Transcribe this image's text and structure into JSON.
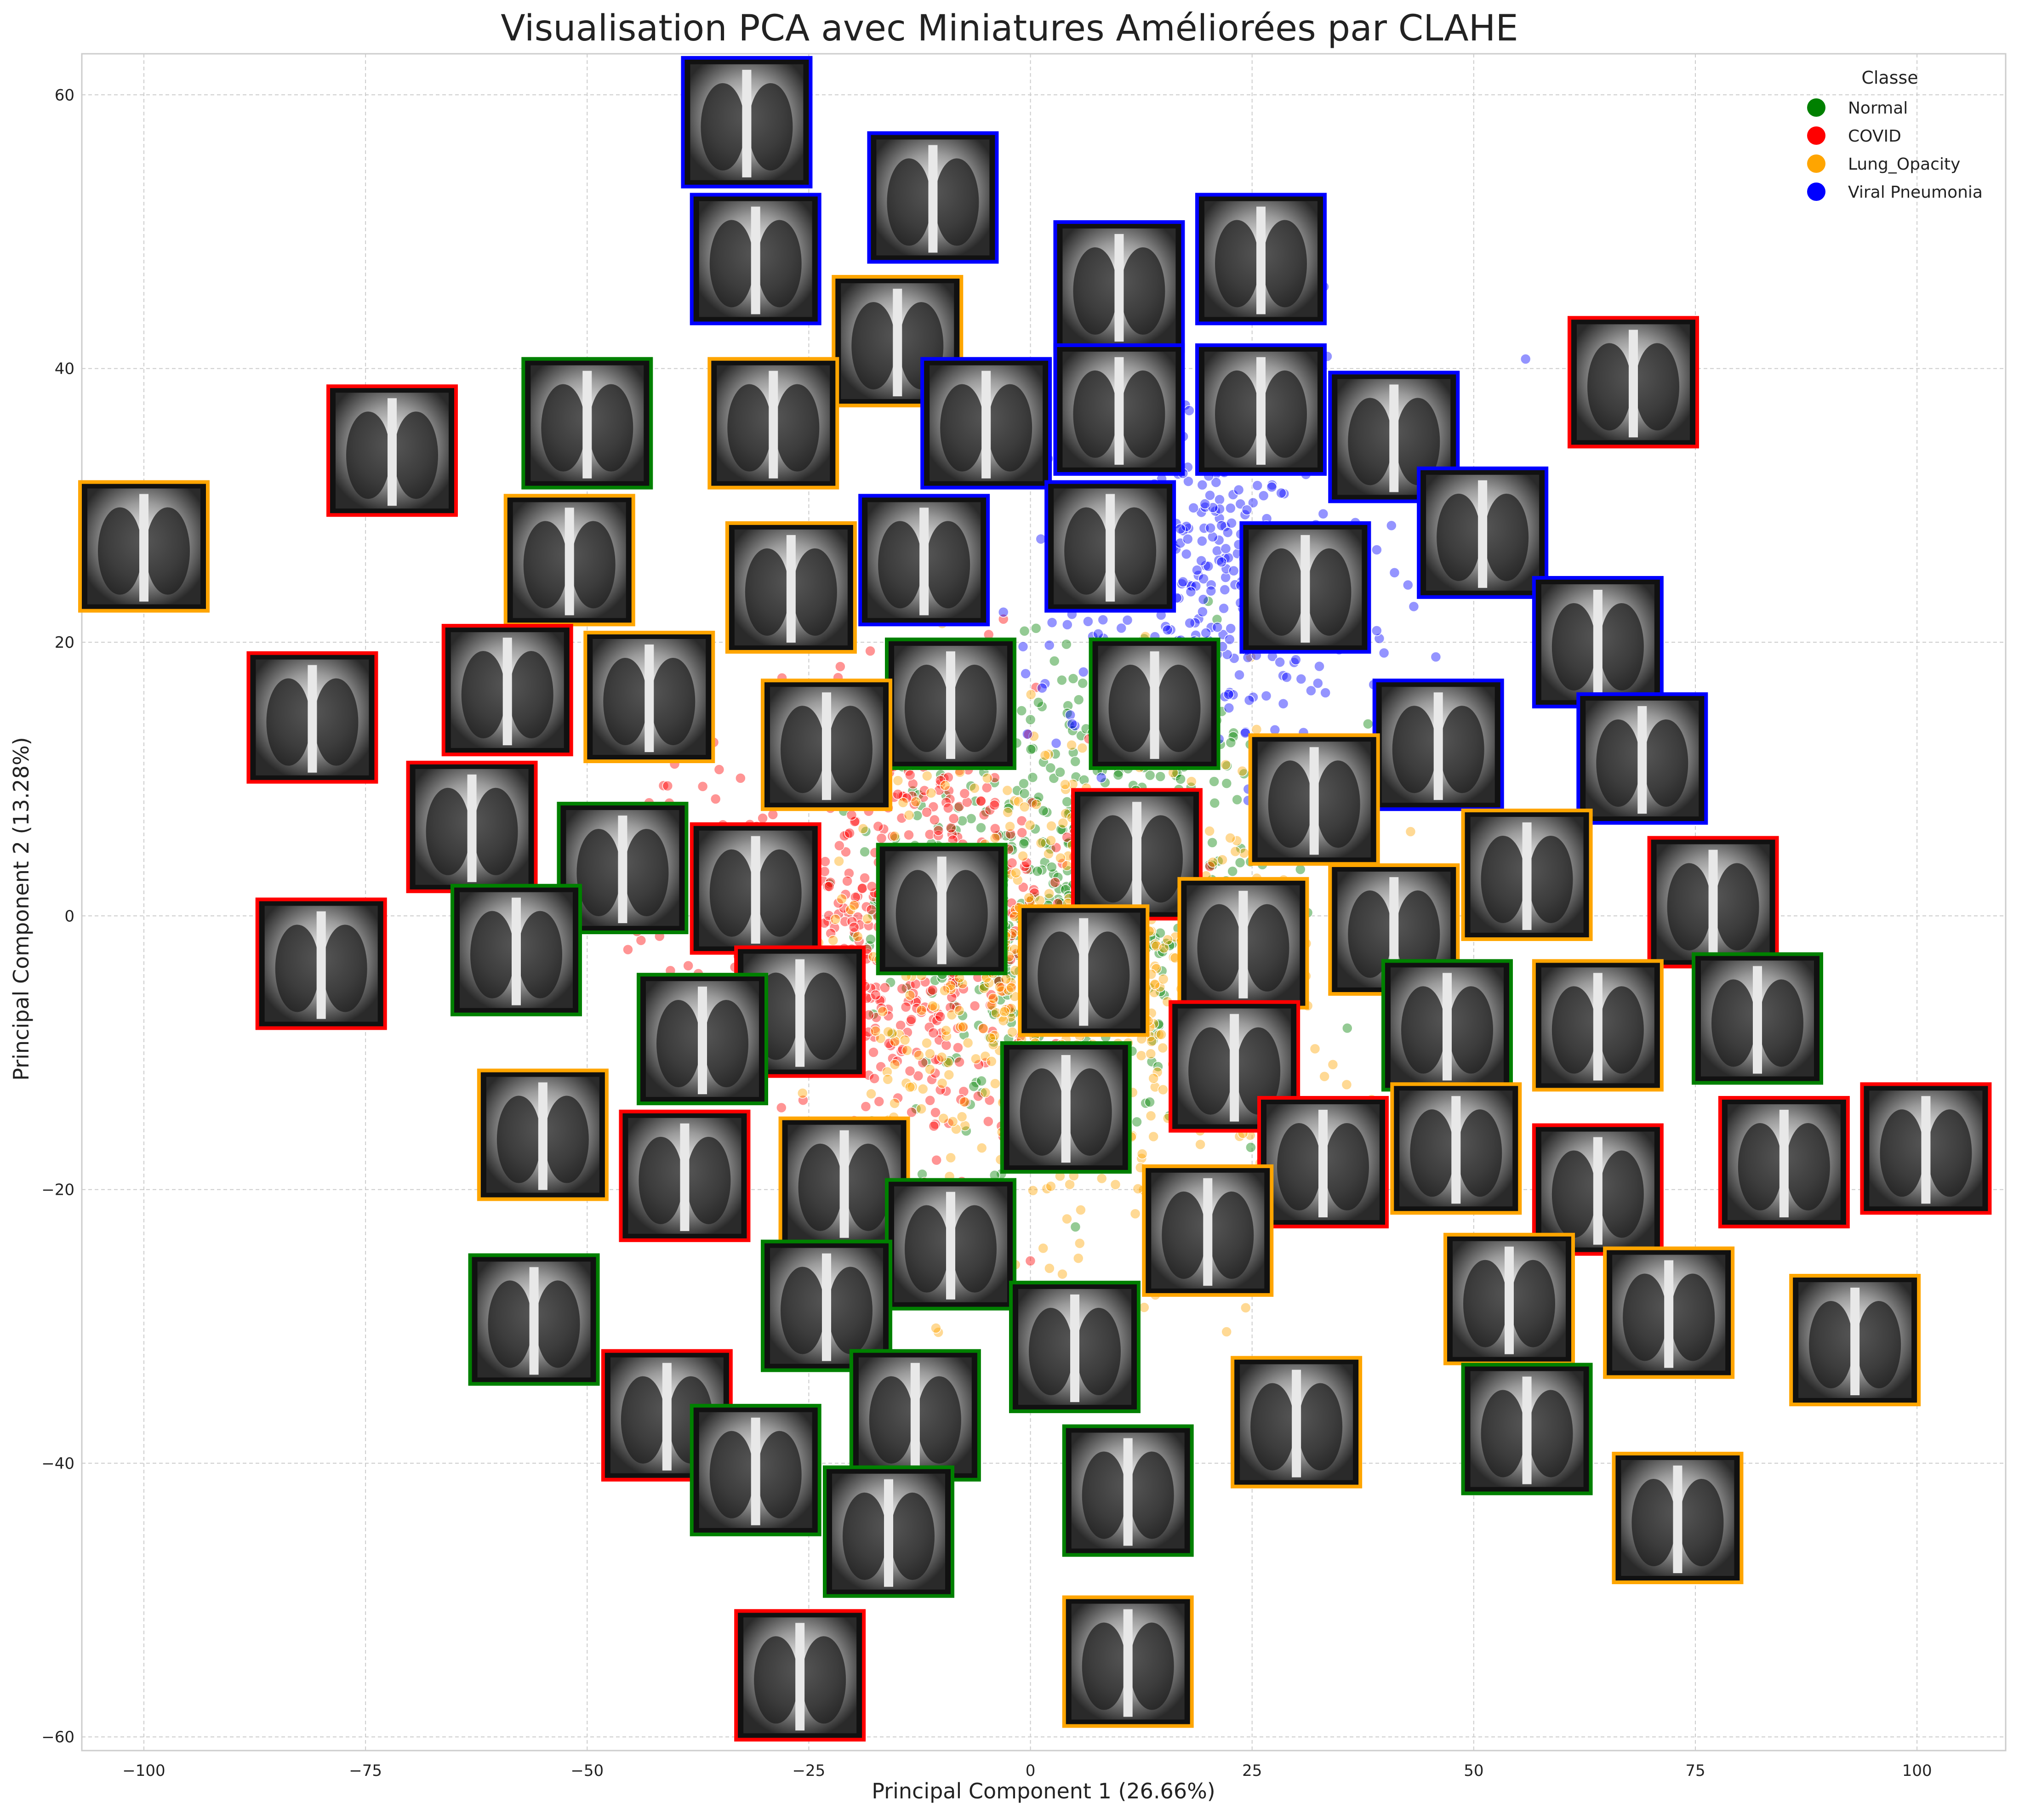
{
  "chart_data": {
    "type": "scatter",
    "title": "Visualisation PCA avec Miniatures Améliorées par CLAHE",
    "xlabel": "Principal Component 1 (26.66%)",
    "ylabel": "Principal Component 2 (13.28%)",
    "xlim": [
      -107,
      110
    ],
    "ylim": [
      -61,
      63
    ],
    "x_ticks": [
      -100,
      -75,
      -50,
      -25,
      0,
      25,
      50,
      75,
      100
    ],
    "x_tick_labels": [
      "−100",
      "−75",
      "−50",
      "−25",
      "0",
      "25",
      "50",
      "75",
      "100"
    ],
    "y_ticks": [
      -60,
      -40,
      -20,
      0,
      20,
      40,
      60
    ],
    "y_tick_labels": [
      "−60",
      "−40",
      "−20",
      "0",
      "20",
      "40",
      "60"
    ],
    "grid": true,
    "legend": {
      "title": "Classe",
      "position": "top-right",
      "entries": [
        "Normal",
        "COVID",
        "Lung_Opacity",
        "Viral Pneumonia"
      ]
    },
    "class_colors": {
      "Normal": "#008000",
      "COVID": "#ff0000",
      "Lung_Opacity": "#ffa500",
      "Viral Pneumonia": "#0000ff"
    },
    "point_clouds": [
      {
        "class": "Normal",
        "center": [
          5,
          2
        ],
        "spread": [
          20,
          15
        ],
        "n": 650
      },
      {
        "class": "COVID",
        "center": [
          -15,
          0
        ],
        "spread": [
          20,
          14
        ],
        "n": 650
      },
      {
        "class": "Lung_Opacity",
        "center": [
          5,
          -5
        ],
        "spread": [
          24,
          16
        ],
        "n": 700
      },
      {
        "class": "Viral Pneumonia",
        "center": [
          20,
          25
        ],
        "spread": [
          18,
          12
        ],
        "n": 400
      }
    ],
    "thumbnails": [
      {
        "class": "Viral Pneumonia",
        "x": -32,
        "y": 58
      },
      {
        "class": "Viral Pneumonia",
        "x": -11,
        "y": 52.5
      },
      {
        "class": "Viral Pneumonia",
        "x": -31,
        "y": 48
      },
      {
        "class": "Viral Pneumonia",
        "x": 10,
        "y": 46
      },
      {
        "class": "Viral Pneumonia",
        "x": 26,
        "y": 48
      },
      {
        "class": "Lung_Opacity",
        "x": -15,
        "y": 42
      },
      {
        "class": "COVID",
        "x": 68,
        "y": 39
      },
      {
        "class": "Viral Pneumonia",
        "x": -5,
        "y": 36
      },
      {
        "class": "Viral Pneumonia",
        "x": 10,
        "y": 37
      },
      {
        "class": "Viral Pneumonia",
        "x": 26,
        "y": 37
      },
      {
        "class": "Viral Pneumonia",
        "x": 41,
        "y": 35
      },
      {
        "class": "Lung_Opacity",
        "x": -29,
        "y": 36
      },
      {
        "class": "COVID",
        "x": -72,
        "y": 34
      },
      {
        "class": "Normal",
        "x": -50,
        "y": 36
      },
      {
        "class": "Lung_Opacity",
        "x": -100,
        "y": 27
      },
      {
        "class": "Lung_Opacity",
        "x": -52,
        "y": 26
      },
      {
        "class": "Lung_Opacity",
        "x": -27,
        "y": 24
      },
      {
        "class": "Viral Pneumonia",
        "x": -12,
        "y": 26
      },
      {
        "class": "Viral Pneumonia",
        "x": 9,
        "y": 27
      },
      {
        "class": "Viral Pneumonia",
        "x": 31,
        "y": 24
      },
      {
        "class": "Viral Pneumonia",
        "x": 51,
        "y": 28
      },
      {
        "class": "COVID",
        "x": -81,
        "y": 14.5
      },
      {
        "class": "COVID",
        "x": -59,
        "y": 16.5
      },
      {
        "class": "Lung_Opacity",
        "x": -43,
        "y": 16
      },
      {
        "class": "Viral Pneumonia",
        "x": 64,
        "y": 20
      },
      {
        "class": "Normal",
        "x": -9,
        "y": 15.5
      },
      {
        "class": "Normal",
        "x": 14,
        "y": 15.5
      },
      {
        "class": "Lung_Opacity",
        "x": -23,
        "y": 12.5
      },
      {
        "class": "Viral Pneumonia",
        "x": 46,
        "y": 12.5
      },
      {
        "class": "Viral Pneumonia",
        "x": 69,
        "y": 11.5
      },
      {
        "class": "COVID",
        "x": -63,
        "y": 6.5
      },
      {
        "class": "Lung_Opacity",
        "x": 32,
        "y": 8.5
      },
      {
        "class": "Normal",
        "x": -46,
        "y": 3.5
      },
      {
        "class": "COVID",
        "x": -31,
        "y": 2
      },
      {
        "class": "COVID",
        "x": 12,
        "y": 4.5
      },
      {
        "class": "Lung_Opacity",
        "x": 56,
        "y": 3
      },
      {
        "class": "COVID",
        "x": 77,
        "y": 1
      },
      {
        "class": "Normal",
        "x": -10,
        "y": 0.5
      },
      {
        "class": "COVID",
        "x": -80,
        "y": -3.5
      },
      {
        "class": "Normal",
        "x": -58,
        "y": -2.5
      },
      {
        "class": "Lung_Opacity",
        "x": 41,
        "y": -1
      },
      {
        "class": "Lung_Opacity",
        "x": 6,
        "y": -4
      },
      {
        "class": "Lung_Opacity",
        "x": 24,
        "y": -2
      },
      {
        "class": "COVID",
        "x": -26,
        "y": -7
      },
      {
        "class": "Normal",
        "x": -37,
        "y": -9
      },
      {
        "class": "Normal",
        "x": 47,
        "y": -8
      },
      {
        "class": "Lung_Opacity",
        "x": 64,
        "y": -8
      },
      {
        "class": "Normal",
        "x": 82,
        "y": -7.5
      },
      {
        "class": "COVID",
        "x": 23,
        "y": -11
      },
      {
        "class": "Normal",
        "x": 4,
        "y": -14
      },
      {
        "class": "Lung_Opacity",
        "x": -55,
        "y": -16
      },
      {
        "class": "COVID",
        "x": -39,
        "y": -19
      },
      {
        "class": "Lung_Opacity",
        "x": -21,
        "y": -19.5
      },
      {
        "class": "COVID",
        "x": 33,
        "y": -18
      },
      {
        "class": "Lung_Opacity",
        "x": 48,
        "y": -17
      },
      {
        "class": "COVID",
        "x": 64,
        "y": -20
      },
      {
        "class": "COVID",
        "x": 85,
        "y": -18
      },
      {
        "class": "COVID",
        "x": 101,
        "y": -17
      },
      {
        "class": "Lung_Opacity",
        "x": 20,
        "y": -23
      },
      {
        "class": "Normal",
        "x": -9,
        "y": -24
      },
      {
        "class": "Normal",
        "x": -56,
        "y": -29.5
      },
      {
        "class": "Normal",
        "x": -23,
        "y": -28.5
      },
      {
        "class": "Normal",
        "x": 5,
        "y": -31.5
      },
      {
        "class": "Lung_Opacity",
        "x": 54,
        "y": -28
      },
      {
        "class": "Lung_Opacity",
        "x": 72,
        "y": -29
      },
      {
        "class": "Lung_Opacity",
        "x": 93,
        "y": -31
      },
      {
        "class": "Lung_Opacity",
        "x": 30,
        "y": -37
      },
      {
        "class": "COVID",
        "x": -41,
        "y": -36.5
      },
      {
        "class": "Normal",
        "x": -13,
        "y": -36.5
      },
      {
        "class": "Normal",
        "x": 56,
        "y": -37.5
      },
      {
        "class": "Normal",
        "x": -31,
        "y": -40.5
      },
      {
        "class": "Normal",
        "x": 11,
        "y": -42
      },
      {
        "class": "Lung_Opacity",
        "x": 73,
        "y": -44
      },
      {
        "class": "Normal",
        "x": -16,
        "y": -45
      },
      {
        "class": "COVID",
        "x": -26,
        "y": -55.5
      },
      {
        "class": "Lung_Opacity",
        "x": 11,
        "y": -54.5
      }
    ]
  }
}
